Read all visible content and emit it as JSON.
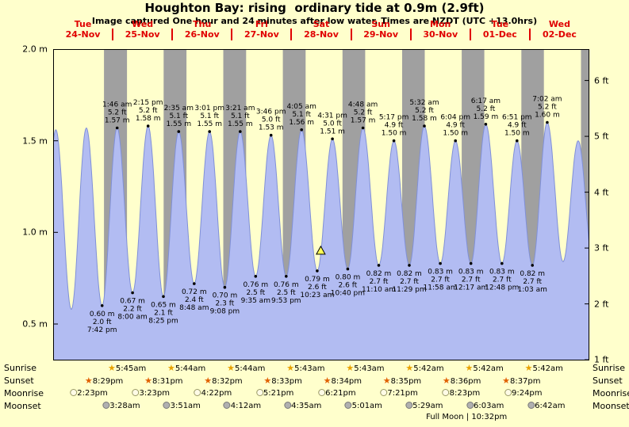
{
  "header": {
    "title": "Houghton Bay: rising  ordinary tide at 0.9m (2.9ft)",
    "subtitle": "Image captured One hour and 24 minutes after low water. Times are NZDT (UTC +13.0hrs)"
  },
  "axis": {
    "days": [
      {
        "name": "Tue",
        "date": "24-Nov"
      },
      {
        "name": "Wed",
        "date": "25-Nov"
      },
      {
        "name": "Thu",
        "date": "26-Nov"
      },
      {
        "name": "Fri",
        "date": "27-Nov"
      },
      {
        "name": "Sat",
        "date": "28-Nov"
      },
      {
        "name": "Sun",
        "date": "29-Nov"
      },
      {
        "name": "Mon",
        "date": "30-Nov"
      },
      {
        "name": "Tue",
        "date": "01-Dec"
      },
      {
        "name": "Wed",
        "date": "02-Dec"
      }
    ],
    "left_labels": [
      {
        "text": "2.0 m",
        "m": 2.0
      },
      {
        "text": "1.5 m",
        "m": 1.5
      },
      {
        "text": "1.0 m",
        "m": 1.0
      },
      {
        "text": "0.5 m",
        "m": 0.5
      }
    ],
    "right_labels": [
      {
        "text": "6 ft",
        "ft": 6
      },
      {
        "text": "5 ft",
        "ft": 5
      },
      {
        "text": "4 ft",
        "ft": 4
      },
      {
        "text": "3 ft",
        "ft": 3
      },
      {
        "text": "2 ft",
        "ft": 2
      },
      {
        "text": "1 ft",
        "ft": 1
      }
    ]
  },
  "chart_data": {
    "type": "area",
    "title": "Houghton Bay tide curve",
    "x_axis": {
      "start": "Tue 24-Nov 00:00 NZDT",
      "hours": 216
    },
    "y_axis": {
      "top_m": 2.0,
      "bottom_m": 0.3,
      "units": [
        "m",
        "ft"
      ]
    },
    "marker": {
      "t": 107.8,
      "h": 0.9
    },
    "night_bands": [
      [
        20.48,
        29.75
      ],
      [
        44.52,
        53.73
      ],
      [
        68.53,
        77.73
      ],
      [
        92.55,
        101.72
      ],
      [
        116.57,
        125.72
      ],
      [
        140.58,
        149.7
      ],
      [
        164.6,
        173.7
      ],
      [
        188.62,
        197.7
      ],
      [
        212.63,
        216
      ]
    ],
    "colors": {
      "day_bg": "#ffffcc",
      "night_bg": "#a0a0a0",
      "water": "#b2bcf2",
      "water_edge": "#8090d8",
      "day_label": "#e00000"
    },
    "extremes": [
      {
        "t": -5.1,
        "h": 0.58,
        "kind": "low"
      },
      {
        "t": 1.08,
        "h": 1.56,
        "kind": "high"
      },
      {
        "t": 7.33,
        "h": 0.58,
        "kind": "low"
      },
      {
        "t": 13.37,
        "h": 1.57,
        "kind": "high"
      },
      {
        "t": 19.7,
        "h": 0.6,
        "kind": "low",
        "lines": [
          "0.60 m",
          "2.0 ft",
          "7:42 pm"
        ]
      },
      {
        "t": 25.77,
        "h": 1.57,
        "kind": "high",
        "lines": [
          "1:46 am",
          "5.2 ft",
          "1.57 m"
        ]
      },
      {
        "t": 32.0,
        "h": 0.67,
        "kind": "low",
        "lines": [
          "0.67 m",
          "2.2 ft",
          "8:00 am"
        ]
      },
      {
        "t": 38.25,
        "h": 1.58,
        "kind": "high",
        "lines": [
          "2:15 pm",
          "5.2 ft",
          "1.58 m"
        ]
      },
      {
        "t": 44.42,
        "h": 0.65,
        "kind": "low",
        "lines": [
          "0.65 m",
          "2.1 ft",
          "8:25 pm"
        ]
      },
      {
        "t": 50.58,
        "h": 1.55,
        "kind": "high",
        "lines": [
          "2:35 am",
          "5.1 ft",
          "1.55 m"
        ]
      },
      {
        "t": 56.8,
        "h": 0.72,
        "kind": "low",
        "lines": [
          "0.72 m",
          "2.4 ft",
          "8:48 am"
        ]
      },
      {
        "t": 63.02,
        "h": 1.55,
        "kind": "high",
        "lines": [
          "3:01 pm",
          "5.1 ft",
          "1.55 m"
        ]
      },
      {
        "t": 69.13,
        "h": 0.7,
        "kind": "low",
        "lines": [
          "0.70 m",
          "2.3 ft",
          "9:08 pm"
        ]
      },
      {
        "t": 75.35,
        "h": 1.55,
        "kind": "high",
        "lines": [
          "3:21 am",
          "5.1 ft",
          "1.55 m"
        ]
      },
      {
        "t": 81.58,
        "h": 0.76,
        "kind": "low",
        "lines": [
          "0.76 m",
          "2.5 ft",
          "9:35 am"
        ]
      },
      {
        "t": 87.77,
        "h": 1.53,
        "kind": "high",
        "lines": [
          "3:46 pm",
          "5.0 ft",
          "1.53 m"
        ]
      },
      {
        "t": 93.88,
        "h": 0.76,
        "kind": "low",
        "lines": [
          "0.76 m",
          "2.5 ft",
          "9:53 pm"
        ]
      },
      {
        "t": 100.08,
        "h": 1.56,
        "kind": "high",
        "lines": [
          "4:05 am",
          "5.1 ft",
          "1.56 m"
        ]
      },
      {
        "t": 106.38,
        "h": 0.79,
        "kind": "low",
        "lines": [
          "0.79 m",
          "2.6 ft",
          "10:23 am"
        ]
      },
      {
        "t": 112.52,
        "h": 1.51,
        "kind": "high",
        "lines": [
          "4:31 pm",
          "5.0 ft",
          "1.51 m"
        ]
      },
      {
        "t": 118.67,
        "h": 0.8,
        "kind": "low",
        "lines": [
          "0.80 m",
          "2.6 ft",
          "10:40 pm"
        ]
      },
      {
        "t": 124.8,
        "h": 1.57,
        "kind": "high",
        "lines": [
          "4:48 am",
          "5.2 ft",
          "1.57 m"
        ]
      },
      {
        "t": 131.17,
        "h": 0.82,
        "kind": "low",
        "lines": [
          "0.82 m",
          "2.7 ft",
          "11:10 am"
        ]
      },
      {
        "t": 137.28,
        "h": 1.5,
        "kind": "high",
        "lines": [
          "5:17 pm",
          "4.9 ft",
          "1.50 m"
        ]
      },
      {
        "t": 143.48,
        "h": 0.82,
        "kind": "low",
        "lines": [
          "0.82 m",
          "2.7 ft",
          "11:29 pm"
        ]
      },
      {
        "t": 149.53,
        "h": 1.58,
        "kind": "high",
        "lines": [
          "5:32 am",
          "5.2 ft",
          "1.58 m"
        ]
      },
      {
        "t": 155.97,
        "h": 0.83,
        "kind": "low",
        "lines": [
          "0.83 m",
          "2.7 ft",
          "11:58 am"
        ]
      },
      {
        "t": 162.07,
        "h": 1.5,
        "kind": "high",
        "lines": [
          "6:04 pm",
          "4.9 ft",
          "1.50 m"
        ]
      },
      {
        "t": 168.28,
        "h": 0.83,
        "kind": "low",
        "lines": [
          "0.83 m",
          "2.7 ft",
          "12:17 am"
        ]
      },
      {
        "t": 174.28,
        "h": 1.59,
        "kind": "high",
        "lines": [
          "6:17 am",
          "5.2 ft",
          "1.59 m"
        ]
      },
      {
        "t": 180.8,
        "h": 0.83,
        "kind": "low",
        "lines": [
          "0.83 m",
          "2.7 ft",
          "12:48 pm"
        ]
      },
      {
        "t": 186.85,
        "h": 1.5,
        "kind": "high",
        "lines": [
          "6:51 pm",
          "4.9 ft",
          "1.50 m"
        ]
      },
      {
        "t": 193.05,
        "h": 0.82,
        "kind": "low",
        "lines": [
          "0.82 m",
          "2.7 ft",
          "1:03 am"
        ]
      },
      {
        "t": 199.03,
        "h": 1.6,
        "kind": "high",
        "lines": [
          "7:02 am",
          "5.2 ft",
          "1.60 m"
        ]
      },
      {
        "t": 205.4,
        "h": 0.84,
        "kind": "low"
      },
      {
        "t": 211.5,
        "h": 1.5,
        "kind": "high"
      },
      {
        "t": 217.6,
        "h": 0.82,
        "kind": "low"
      }
    ]
  },
  "astro": {
    "rows": [
      {
        "label": "Sunrise",
        "icon": "sunrise-star-icon",
        "events": [
          {
            "t": 29.75,
            "time": "5:45am"
          },
          {
            "t": 53.73,
            "time": "5:44am"
          },
          {
            "t": 77.73,
            "time": "5:44am"
          },
          {
            "t": 101.72,
            "time": "5:43am"
          },
          {
            "t": 125.72,
            "time": "5:43am"
          },
          {
            "t": 149.7,
            "time": "5:42am"
          },
          {
            "t": 173.7,
            "time": "5:42am"
          },
          {
            "t": 197.7,
            "time": "5:42am"
          }
        ]
      },
      {
        "label": "Sunset",
        "icon": "sunset-star-icon",
        "events": [
          {
            "t": 20.48,
            "time": "8:29pm"
          },
          {
            "t": 44.52,
            "time": "8:31pm"
          },
          {
            "t": 68.53,
            "time": "8:32pm"
          },
          {
            "t": 92.55,
            "time": "8:33pm"
          },
          {
            "t": 116.57,
            "time": "8:34pm"
          },
          {
            "t": 140.58,
            "time": "8:35pm"
          },
          {
            "t": 164.6,
            "time": "8:36pm"
          },
          {
            "t": 188.62,
            "time": "8:37pm"
          }
        ]
      },
      {
        "label": "Moonrise",
        "icon": "moonrise-moon-icon",
        "events": [
          {
            "t": 14.38,
            "time": "2:23pm"
          },
          {
            "t": 39.38,
            "time": "3:23pm"
          },
          {
            "t": 64.37,
            "time": "4:22pm"
          },
          {
            "t": 89.35,
            "time": "5:21pm"
          },
          {
            "t": 114.35,
            "time": "6:21pm"
          },
          {
            "t": 139.35,
            "time": "7:21pm"
          },
          {
            "t": 164.38,
            "time": "8:23pm"
          },
          {
            "t": 189.4,
            "time": "9:24pm"
          }
        ]
      },
      {
        "label": "Moonset",
        "icon": "moonset-moon-icon",
        "events": [
          {
            "t": 27.47,
            "time": "3:28am"
          },
          {
            "t": 51.85,
            "time": "3:51am"
          },
          {
            "t": 76.2,
            "time": "4:12am"
          },
          {
            "t": 100.58,
            "time": "4:35am"
          },
          {
            "t": 125.02,
            "time": "5:01am"
          },
          {
            "t": 149.48,
            "time": "5:29am"
          },
          {
            "t": 174.05,
            "time": "6:03am"
          },
          {
            "t": 198.7,
            "time": "6:42am"
          }
        ]
      }
    ],
    "full_moon": {
      "t": 166.53,
      "text": "Full Moon | 10:32pm"
    }
  }
}
